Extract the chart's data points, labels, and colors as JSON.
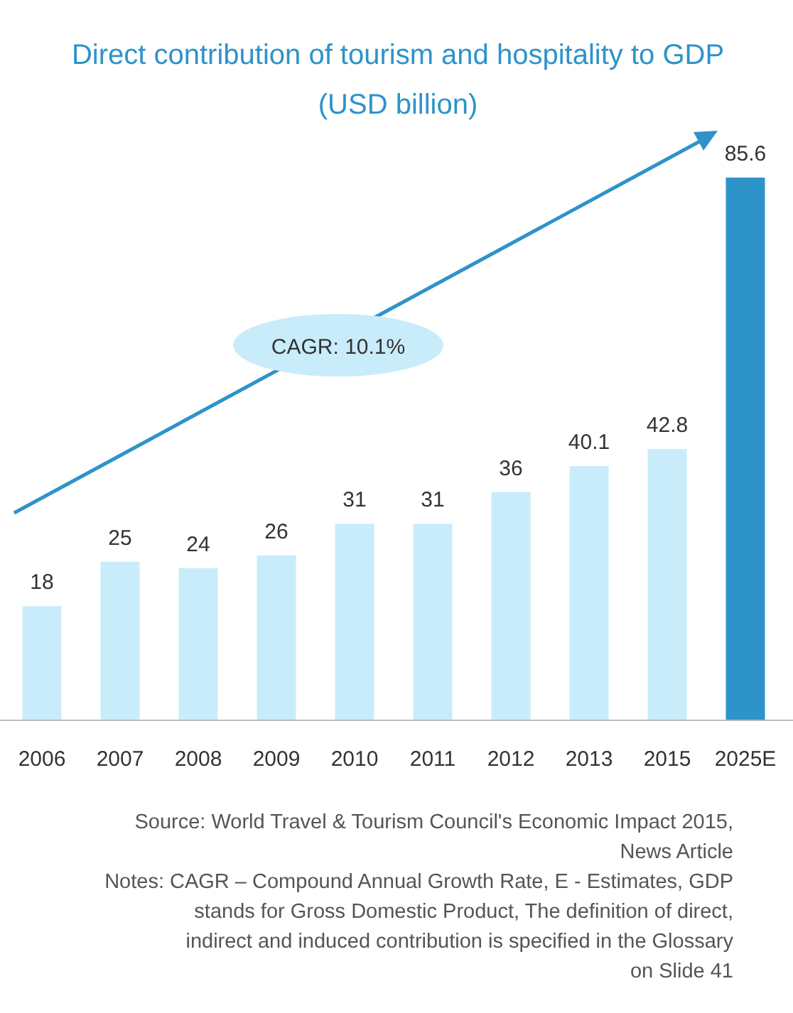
{
  "chart_data": {
    "type": "bar",
    "title": "Direct contribution of tourism and hospitality to GDP",
    "subtitle": "(USD billion)",
    "categories": [
      "2006",
      "2007",
      "2008",
      "2009",
      "2010",
      "2011",
      "2012",
      "2013",
      "2015",
      "2025E"
    ],
    "values": [
      18,
      25,
      24,
      26,
      31,
      31,
      36,
      40.1,
      42.8,
      85.6
    ],
    "colors": [
      "#c9ecfb",
      "#c9ecfb",
      "#c9ecfb",
      "#c9ecfb",
      "#c9ecfb",
      "#c9ecfb",
      "#c9ecfb",
      "#c9ecfb",
      "#c9ecfb",
      "#2e93c9"
    ],
    "data_labels": true,
    "annotations": [
      "CAGR: 10.1%",
      "Source: World Travel & Tourism Council's Economic Impact 2015, News Article",
      "Notes: CAGR – Compound Annual Growth Rate, E - Estimates, GDP stands for Gross Domestic Product, The definition of direct, indirect and induced contribution is specified in the Glossary on Slide 41"
    ]
  }
}
